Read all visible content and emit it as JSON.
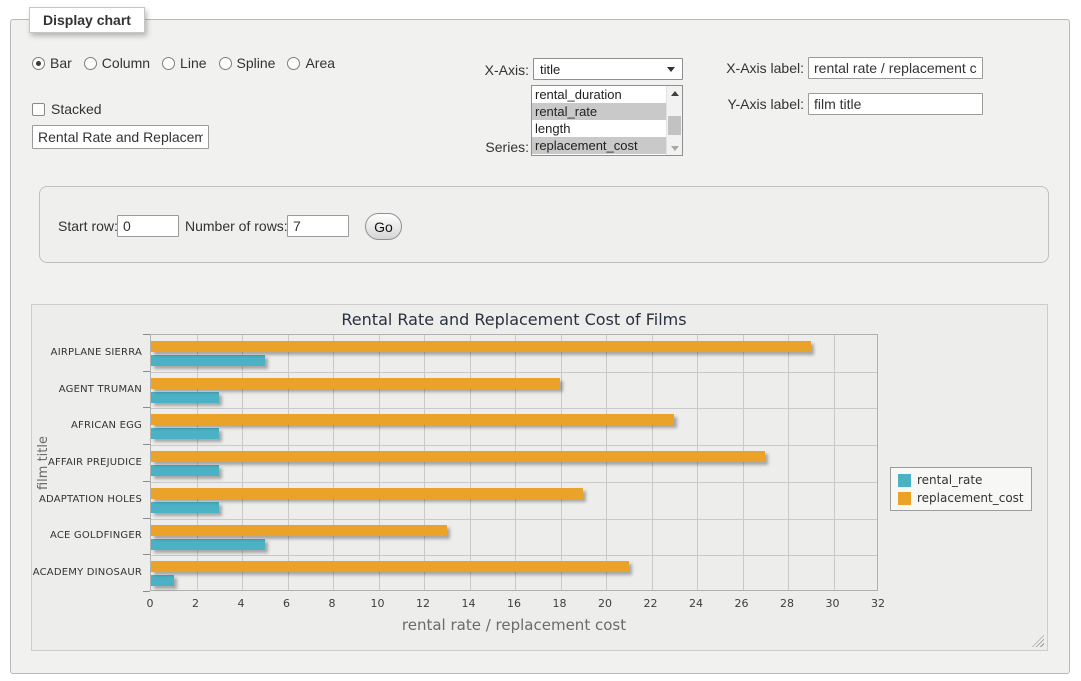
{
  "panel_title": "Display chart",
  "chart_type": {
    "options": [
      {
        "label": "Bar",
        "selected": true
      },
      {
        "label": "Column",
        "selected": false
      },
      {
        "label": "Line",
        "selected": false
      },
      {
        "label": "Spline",
        "selected": false
      },
      {
        "label": "Area",
        "selected": false
      }
    ]
  },
  "stacked": {
    "label": "Stacked",
    "checked": false
  },
  "chart_title_input": {
    "value": "Rental Rate and Replacement Cost of Films"
  },
  "x_axis_select": {
    "label": "X-Axis:",
    "value": "title"
  },
  "series_select": {
    "label": "Series:",
    "options": [
      {
        "label": "rental_duration",
        "selected": false
      },
      {
        "label": "rental_rate",
        "selected": true
      },
      {
        "label": "length",
        "selected": false
      },
      {
        "label": "replacement_cost",
        "selected": true
      }
    ]
  },
  "x_axis_label_field": {
    "label": "X-Axis label:",
    "value": "rental rate / replacement cost"
  },
  "y_axis_label_field": {
    "label": "Y-Axis label:",
    "value": "film title"
  },
  "rows_form": {
    "start_row_label": "Start row:",
    "start_row_value": "0",
    "num_rows_label": "Number of rows:",
    "num_rows_value": "7",
    "go_label": "Go"
  },
  "chart_data": {
    "type": "bar",
    "title": "Rental Rate and Replacement Cost of Films",
    "xlabel": "rental rate / replacement cost",
    "ylabel": "film title",
    "categories": [
      "AIRPLANE SIERRA",
      "AGENT TRUMAN",
      "AFRICAN EGG",
      "AFFAIR PREJUDICE",
      "ADAPTATION HOLES",
      "ACE GOLDFINGER",
      "ACADEMY DINOSAUR"
    ],
    "series": [
      {
        "name": "rental_rate",
        "color": "#4bb2c5",
        "values": [
          4.99,
          2.99,
          2.99,
          2.99,
          2.99,
          4.99,
          0.99
        ]
      },
      {
        "name": "replacement_cost",
        "color": "#eaa228",
        "values": [
          28.99,
          17.99,
          22.99,
          26.99,
          18.99,
          12.99,
          20.99
        ]
      }
    ],
    "xlim": [
      0,
      32
    ],
    "xticks": [
      0,
      2,
      4,
      6,
      8,
      10,
      12,
      14,
      16,
      18,
      20,
      22,
      24,
      26,
      28,
      30,
      32
    ],
    "grid": true,
    "legend_position": "right",
    "bar_order_note": "replacement_cost bar drawn above rental_rate bar in each category"
  }
}
